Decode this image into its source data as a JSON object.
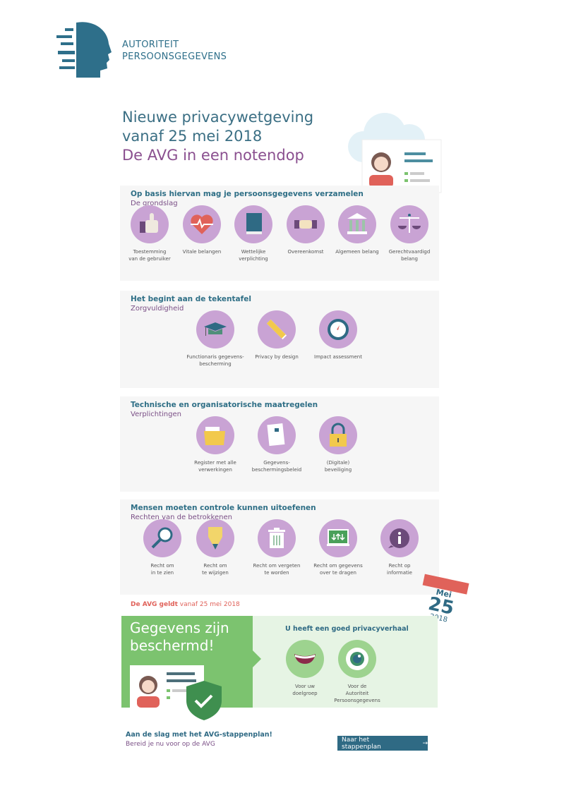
{
  "logo": {
    "line1": "AUTORITEIT",
    "line2": "PERSOONSGEGEVENS"
  },
  "title": {
    "line1": "Nieuwe privacywetgeving",
    "line2": "vanaf 25 mei 2018",
    "line3": "De AVG in een notendop"
  },
  "sections": [
    {
      "heading": "Op basis hiervan mag je persoonsgegevens verzamelen",
      "subheading": "De grondslag",
      "items": [
        {
          "label": "Toestemming\nvan de gebruiker",
          "icon": "thumbs-up-icon"
        },
        {
          "label": "Vitale belangen",
          "icon": "heart-icon"
        },
        {
          "label": "Wettelijke\nverplichting",
          "icon": "book-icon"
        },
        {
          "label": "Overeenkomst",
          "icon": "handshake-icon"
        },
        {
          "label": "Algemeen belang",
          "icon": "government-building-icon"
        },
        {
          "label": "Gerechtvaardigd\nbelang",
          "icon": "scales-icon"
        }
      ]
    },
    {
      "heading": "Het begint aan de tekentafel",
      "subheading": "Zorgvuldigheid",
      "items": [
        {
          "label": "Functionaris gegevens-\nbescherming",
          "icon": "graduation-cap-icon"
        },
        {
          "label": "Privacy by design",
          "icon": "pencil-ruler-icon"
        },
        {
          "label": "Impact assessment",
          "icon": "compass-icon"
        }
      ]
    },
    {
      "heading": "Technische en organisatorische maatregelen",
      "subheading": "Verplichtingen",
      "items": [
        {
          "label": "Register met alle\nverwerkingen",
          "icon": "folder-icon"
        },
        {
          "label": "Gegevens-\nbeschermingsbeleid",
          "icon": "document-lock-icon"
        },
        {
          "label": "(Digitale)\nbeveiliging",
          "icon": "padlock-icon"
        }
      ]
    },
    {
      "heading": "Mensen moeten controle kunnen uitoefenen",
      "subheading": "Rechten van de betrokkenen",
      "items": [
        {
          "label": "Recht om\nin te zien",
          "icon": "magnifier-icon"
        },
        {
          "label": "Recht om\nte wijzigen",
          "icon": "pencil-icon"
        },
        {
          "label": "Recht om vergeten\nte worden",
          "icon": "trash-icon"
        },
        {
          "label": "Recht om gegevens\nover te dragen",
          "icon": "transfer-screen-icon"
        },
        {
          "label": "Recht op\ninformatie",
          "icon": "info-icon"
        }
      ]
    }
  ],
  "avg_date": {
    "bold": "De AVG geldt",
    "rest": " vanaf 25 mei 2018"
  },
  "calendar": {
    "month": "Mei",
    "day": "25",
    "year": "2018"
  },
  "banner": {
    "headline": "Gegevens zijn beschermd!",
    "right_heading": "U heeft een goed privacyverhaal",
    "items": [
      {
        "label": "Voor uw\ndoelgroep",
        "icon": "smile-icon"
      },
      {
        "label": "Voor de\nAutoriteit Persoonsgegevens",
        "icon": "eye-icon"
      }
    ]
  },
  "footer": {
    "heading": "Aan de slag met het AVG-stappenplan!",
    "subheading": "Bereid je nu voor op de AVG",
    "button": "Naar het stappenplan"
  },
  "colors": {
    "teal": "#2f6a84",
    "purple": "#c9a3d4",
    "green": "#7cc36f",
    "red": "#e0625a"
  }
}
